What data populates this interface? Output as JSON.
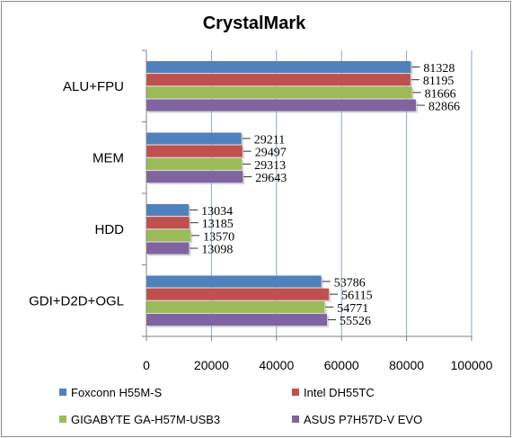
{
  "chart_data": {
    "type": "bar",
    "orientation": "horizontal",
    "title": "CrystalMark",
    "categories": [
      "ALU+FPU",
      "MEM",
      "HDD",
      "GDI+D2D+OGL"
    ],
    "xlim": [
      0,
      100000
    ],
    "xticks": [
      0,
      20000,
      40000,
      60000,
      80000,
      100000
    ],
    "grid": true,
    "legend_position": "bottom",
    "series": [
      {
        "name": "Foxconn H55M-S",
        "color": "#4f81bd",
        "values": [
          81328,
          29211,
          13034,
          53786
        ]
      },
      {
        "name": "Intel DH55TC",
        "color": "#c0504d",
        "values": [
          81195,
          29497,
          13185,
          56115
        ]
      },
      {
        "name": "GIGABYTE GA-H57M-USB3",
        "color": "#9bbb59",
        "values": [
          81666,
          29313,
          13570,
          54771
        ]
      },
      {
        "name": "ASUS P7H57D-V EVO",
        "color": "#8064a2",
        "values": [
          82866,
          29643,
          13098,
          55526
        ]
      }
    ]
  }
}
